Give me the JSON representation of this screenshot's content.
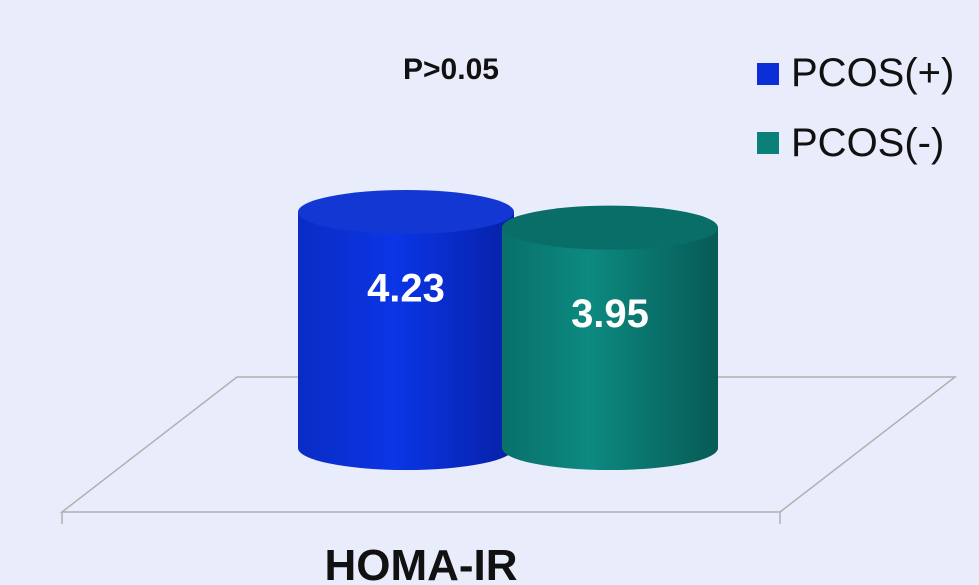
{
  "chart_data": {
    "type": "bar",
    "style": "3d-cylinder",
    "categories": [
      "HOMA-IR"
    ],
    "series": [
      {
        "name": "PCOS(+)",
        "values": [
          4.23
        ],
        "color": "#0a2fd6"
      },
      {
        "name": "PCOS(-)",
        "values": [
          3.95
        ],
        "color": "#0b8078"
      }
    ],
    "data_labels": [
      "4.23",
      "3.95"
    ],
    "annotation": "P>0.05",
    "legend_position": "top-right",
    "grid": false,
    "ylim": [
      0,
      4.23
    ]
  },
  "colors": {
    "background": "#e9ecfb",
    "floor_stroke": "#b0b0b0"
  }
}
